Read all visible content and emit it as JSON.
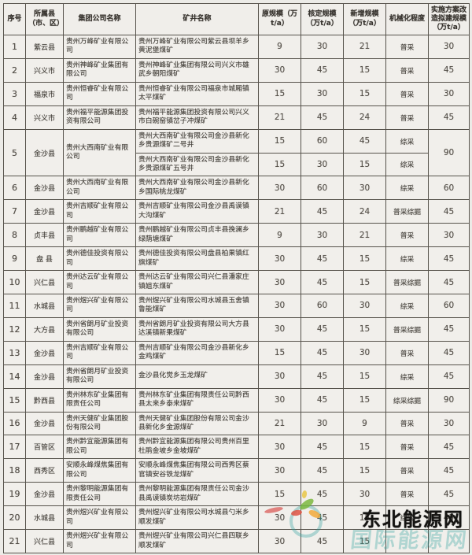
{
  "table": {
    "columns": [
      "序号",
      "所属县（市、区）",
      "集团公司名称",
      "矿井名称",
      "原规模（万t/a）",
      "核定规模（万t/a）",
      "新增规模（万t/a）",
      "机械化程度",
      "实施方案改造拟建规模（万t/a）"
    ],
    "rows": [
      {
        "no": "1",
        "county": "紫云县",
        "company": "贵州万峰矿业有限公司",
        "plan": "30",
        "mines": [
          {
            "name": "贵州万峰矿业有限公司紫云县坝羊乡黄泥堡煤矿",
            "orig": "9",
            "approved": "30",
            "added": "21",
            "mech": "普采"
          }
        ]
      },
      {
        "no": "2",
        "county": "兴义市",
        "company": "贵州神峰矿业集团有限公司",
        "plan": "45",
        "mines": [
          {
            "name": "贵州神峰矿业集团有限公司兴义市雄武乡朝阳煤矿",
            "orig": "30",
            "approved": "45",
            "added": "15",
            "mech": "普采"
          }
        ]
      },
      {
        "no": "3",
        "county": "福泉市",
        "company": "贵州恒睿矿业有限公司",
        "plan": "30",
        "mines": [
          {
            "name": "贵州恒睿矿业有限公司福泉市城厢镇太平煤矿",
            "orig": "15",
            "approved": "30",
            "added": "15",
            "mech": "普采"
          }
        ]
      },
      {
        "no": "4",
        "county": "兴义市",
        "company": "贵州福平能源集团投资有限公司",
        "plan": "45",
        "mines": [
          {
            "name": "贵州福平能源集团投资有限公司兴义市白碗窑镇岔子冲煤矿",
            "orig": "21",
            "approved": "45",
            "added": "24",
            "mech": "普采"
          }
        ]
      },
      {
        "no": "5",
        "county": "金沙县",
        "company": "贵州大西南矿业有限公司",
        "plan": "90",
        "mines": [
          {
            "name": "贵州大西南矿业有限公司金沙县新化乡贵源煤矿二号井",
            "orig": "15",
            "approved": "60",
            "added": "45",
            "mech": "综采"
          },
          {
            "name": "贵州大西南矿业有限公司金沙县新化乡贵源煤矿五号井",
            "orig": "15",
            "approved": "30",
            "added": "15",
            "mech": "综采"
          }
        ]
      },
      {
        "no": "6",
        "county": "金沙县",
        "company": "贵州大西南矿业有限公司",
        "plan": "60",
        "mines": [
          {
            "name": "贵州大西南矿业有限公司金沙县新化乡国际桃龙煤矿",
            "orig": "30",
            "approved": "60",
            "added": "30",
            "mech": "综采"
          }
        ]
      },
      {
        "no": "7",
        "county": "金沙县",
        "company": "贵州吉顺矿业有限公司",
        "plan": "45",
        "mines": [
          {
            "name": "贵州吉顺矿业有限公司金沙县禹谟镇大沟煤矿",
            "orig": "21",
            "approved": "45",
            "added": "24",
            "mech": "普采综掘"
          }
        ]
      },
      {
        "no": "8",
        "county": "贞丰县",
        "company": "贵州鹏越矿业有限公司",
        "plan": "30",
        "mines": [
          {
            "name": "贵州鹏越矿业有限公司贞丰县挽澜乡绿荫塘煤矿",
            "orig": "9",
            "approved": "30",
            "added": "21",
            "mech": "普采"
          }
        ]
      },
      {
        "no": "9",
        "county": "盘  县",
        "company": "贵州德佳投资有限公司",
        "plan": "45",
        "mines": [
          {
            "name": "贵州德佳投资有限公司盘县柏果镇红旗煤矿",
            "orig": "30",
            "approved": "45",
            "added": "15",
            "mech": "综采"
          }
        ]
      },
      {
        "no": "10",
        "county": "兴仁县",
        "company": "贵州达云矿业有限公司",
        "plan": "45",
        "mines": [
          {
            "name": "贵州达云矿业有限公司兴仁县潘家庄镇姐东煤矿",
            "orig": "30",
            "approved": "45",
            "added": "15",
            "mech": "普采综掘"
          }
        ]
      },
      {
        "no": "11",
        "county": "水城县",
        "company": "贵州煜兴矿业有限公司",
        "plan": "60",
        "mines": [
          {
            "name": "贵州煜兴矿业有限公司水城县玉舍镇鲁能煤矿",
            "orig": "30",
            "approved": "60",
            "added": "30",
            "mech": "综采"
          }
        ]
      },
      {
        "no": "12",
        "county": "大方县",
        "company": "贵州省朗月矿业投资有限公司",
        "plan": "45",
        "mines": [
          {
            "name": "贵州省朗月矿业投资有限公司大方县达溪镇新果煤矿",
            "orig": "30",
            "approved": "45",
            "added": "15",
            "mech": "普采综掘"
          }
        ]
      },
      {
        "no": "13",
        "county": "金沙县",
        "company": "贵州吉顺矿业有限公司",
        "plan": "45",
        "mines": [
          {
            "name": "贵州吉顺矿业有限公司金沙县新化乡金鸡煤矿",
            "orig": "15",
            "approved": "45",
            "added": "30",
            "mech": "普采"
          }
        ]
      },
      {
        "no": "14",
        "county": "金沙县",
        "company": "贵州省朗月矿业投资有限公司",
        "plan": "45",
        "mines": [
          {
            "name": "金沙县化觉乡玉龙煤矿",
            "orig": "30",
            "approved": "45",
            "added": "15",
            "mech": "综采"
          }
        ]
      },
      {
        "no": "15",
        "county": "黔西县",
        "company": "贵州林东矿业集团有限责任公司",
        "plan": "90",
        "mines": [
          {
            "name": "贵州林东矿业集团有限责任公司黔西县太来乡泰来煤矿",
            "orig": "30",
            "approved": "45",
            "added": "15",
            "mech": "综采综掘"
          }
        ]
      },
      {
        "no": "16",
        "county": "金沙县",
        "company": "贵州天健矿业集团股份有限公司",
        "plan": "30",
        "mines": [
          {
            "name": "贵州天健矿业集团股份有限公司金沙县新化乡金源煤矿",
            "orig": "21",
            "approved": "30",
            "added": "9",
            "mech": "普采"
          }
        ]
      },
      {
        "no": "17",
        "county": "百管区",
        "company": "贵州黔宜能源集团有限公司",
        "plan": "45",
        "mines": [
          {
            "name": "贵州黔宜能源集团有限公司贵州百里杜鹃金坡乡金坡煤矿",
            "orig": "30",
            "approved": "45",
            "added": "15",
            "mech": "普采"
          }
        ]
      },
      {
        "no": "18",
        "county": "西秀区",
        "company": "安顺永峰煤焦集团有限公司",
        "plan": "45",
        "mines": [
          {
            "name": "安顺永峰煤焦集团有限公司西秀区蔡官镇安谷铁龙煤矿",
            "orig": "30",
            "approved": "45",
            "added": "15",
            "mech": "普采"
          }
        ]
      },
      {
        "no": "19",
        "county": "金沙县",
        "company": "贵州黎明能源集团有限责任公司",
        "plan": "45",
        "mines": [
          {
            "name": "贵州黎明能源集团有限责任公司金沙县禹谟镇炭坊岩煤矿",
            "orig": "15",
            "approved": "45",
            "added": "30",
            "mech": "普采"
          }
        ]
      },
      {
        "no": "20",
        "county": "水城县",
        "company": "贵州煜兴矿业有限公司",
        "plan": "45",
        "mines": [
          {
            "name": "贵州煜兴矿业有限公司水城县勺米乡顺发煤矿",
            "orig": "30",
            "approved": "45",
            "added": "15",
            "mech": "综采"
          }
        ]
      },
      {
        "no": "21",
        "county": "兴仁县",
        "company": "贵州煜兴矿业有限公司",
        "plan": "",
        "mines": [
          {
            "name": "贵州煜兴矿业有限公司兴仁县四联乡顺发煤矿",
            "orig": "30",
            "approved": "45",
            "added": "15",
            "mech": ""
          }
        ]
      }
    ]
  },
  "watermark": {
    "main_text": "东北能源网",
    "sub_text": "国际能源网"
  },
  "colors": {
    "page_background": "#ecebe7",
    "cell_background": "#f1efeb",
    "border": "#57534c",
    "text": "#44403a",
    "watermark_main": "#151412",
    "watermark_sub": "#2ea09e",
    "logo_green": "#7db93f",
    "logo_orange": "#f2a93b",
    "logo_red": "#df5243"
  }
}
